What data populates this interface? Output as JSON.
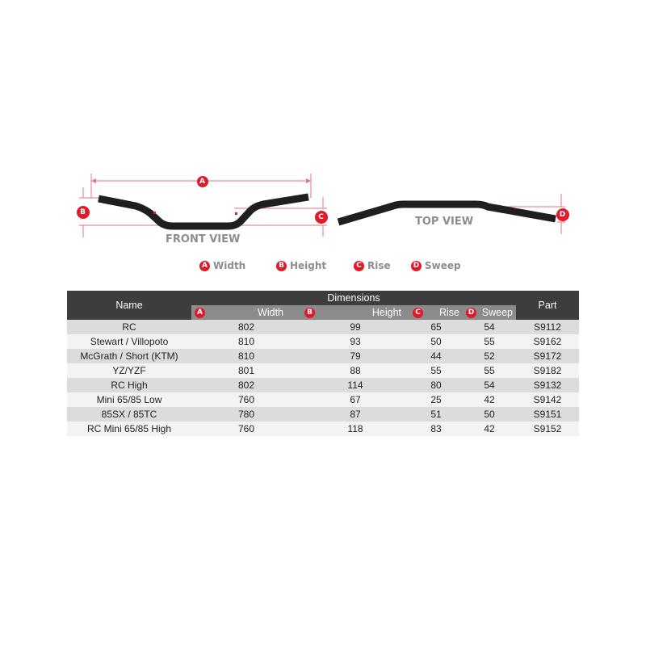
{
  "diagram": {
    "front_view_label": "FRONT VIEW",
    "top_view_label": "TOP VIEW",
    "markers": {
      "a": "A",
      "b": "B",
      "c": "C",
      "d": "D"
    },
    "accent_color": "#e0192b"
  },
  "legend": [
    {
      "marker": "A",
      "label": "Width"
    },
    {
      "marker": "B",
      "label": "Height"
    },
    {
      "marker": "C",
      "label": "Rise"
    },
    {
      "marker": "D",
      "label": "Sweep"
    }
  ],
  "table": {
    "name_header": "Name",
    "dimensions_header": "Dimensions",
    "part_header": "Part",
    "sub_headers": [
      {
        "marker": "A",
        "label": "Width"
      },
      {
        "marker": "B",
        "label": "Height"
      },
      {
        "marker": "C",
        "label": "Rise"
      },
      {
        "marker": "D",
        "label": "Sweep"
      }
    ],
    "rows": [
      {
        "name": "RC",
        "width": "802",
        "height": "99",
        "rise": "65",
        "sweep": "54",
        "part": "S9112"
      },
      {
        "name": "Stewart / Villopoto",
        "width": "810",
        "height": "93",
        "rise": "50",
        "sweep": "55",
        "part": "S9162"
      },
      {
        "name": "McGrath / Short (KTM)",
        "width": "810",
        "height": "79",
        "rise": "44",
        "sweep": "52",
        "part": "S9172"
      },
      {
        "name": "YZ/YZF",
        "width": "801",
        "height": "88",
        "rise": "55",
        "sweep": "55",
        "part": "S9182"
      },
      {
        "name": "RC High",
        "width": "802",
        "height": "114",
        "rise": "80",
        "sweep": "54",
        "part": "S9132"
      },
      {
        "name": "Mini 65/85 Low",
        "width": "760",
        "height": "67",
        "rise": "25",
        "sweep": "42",
        "part": "S9142"
      },
      {
        "name": "85SX / 85TC",
        "width": "780",
        "height": "87",
        "rise": "51",
        "sweep": "50",
        "part": "S9151"
      },
      {
        "name": "RC Mini 65/85 High",
        "width": "760",
        "height": "118",
        "rise": "83",
        "sweep": "42",
        "part": "S9152"
      }
    ]
  }
}
